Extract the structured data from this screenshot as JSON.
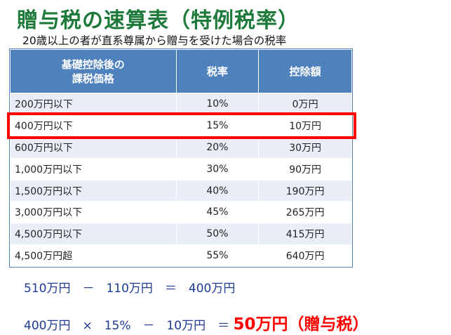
{
  "title": "贈与税の速算表（特例税率）",
  "subtitle": "20歳以上の者が直系尊属から贈与を受けた場合の税率",
  "table": {
    "headers": [
      "基礎控除後の\n課税価格",
      "税率",
      "控除額"
    ],
    "rows": [
      [
        "200万円以下",
        "10%",
        "0万円"
      ],
      [
        "400万円以下",
        "15%",
        "10万円"
      ],
      [
        "600万円以下",
        "20%",
        "30万円"
      ],
      [
        "1,000万円以下",
        "30%",
        "90万円"
      ],
      [
        "1,500万円以下",
        "40%",
        "190万円"
      ],
      [
        "3,000万円以下",
        "45%",
        "265万円"
      ],
      [
        "4,500万円以下",
        "50%",
        "415万円"
      ],
      [
        "4,500万円超",
        "55%",
        "640万円"
      ]
    ],
    "highlighted_row": 1
  },
  "calc1": "510万円　－　110万円　＝　400万円",
  "calc2": "400万円　×　15%　－　10万円　＝",
  "result": "50万円（贈与税）",
  "colors": {
    "title": "#1e7a3a",
    "header_bg": "#4f81bd",
    "highlight": "#ff0000",
    "formula": "#1f3a93"
  }
}
